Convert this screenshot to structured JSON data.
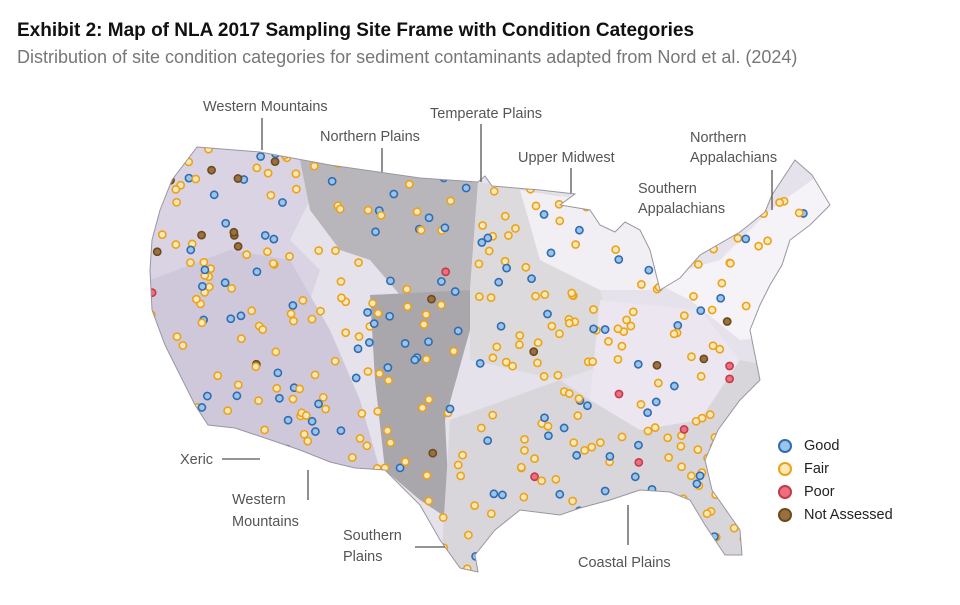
{
  "title": "Exhibit 2: Map of NLA 2017 Sampling Site Frame with Condition Categories",
  "subtitle": "Distribution of site condition categories for sediment contaminants adapted from Nord et al. (2024)",
  "regions": {
    "western_mountains_n": "Western Mountains",
    "northern_plains": "Northern Plains",
    "temperate_plains": "Temperate Plains",
    "upper_midwest": "Upper Midwest",
    "southern_appalachians_1": "Southern",
    "southern_appalachians_2": "Appalachians",
    "northern_appalachians_1": "Northern",
    "northern_appalachians_2": "Appalachians",
    "xeric": "Xeric",
    "western_mountains_s1": "Western",
    "western_mountains_s2": "Mountains",
    "southern_plains_1": "Southern",
    "southern_plains_2": "Plains",
    "coastal_plains": "Coastal Plains"
  },
  "legend": [
    {
      "label": "Good",
      "fill": "#9cc3ea",
      "stroke": "#2f6db0"
    },
    {
      "label": "Fair",
      "fill": "#fde9b8",
      "stroke": "#eba21a"
    },
    {
      "label": "Poor",
      "fill": "#ee7080",
      "stroke": "#c33a4a"
    },
    {
      "label": "Not Assessed",
      "fill": "#9a7040",
      "stroke": "#6b4a1e"
    }
  ]
}
